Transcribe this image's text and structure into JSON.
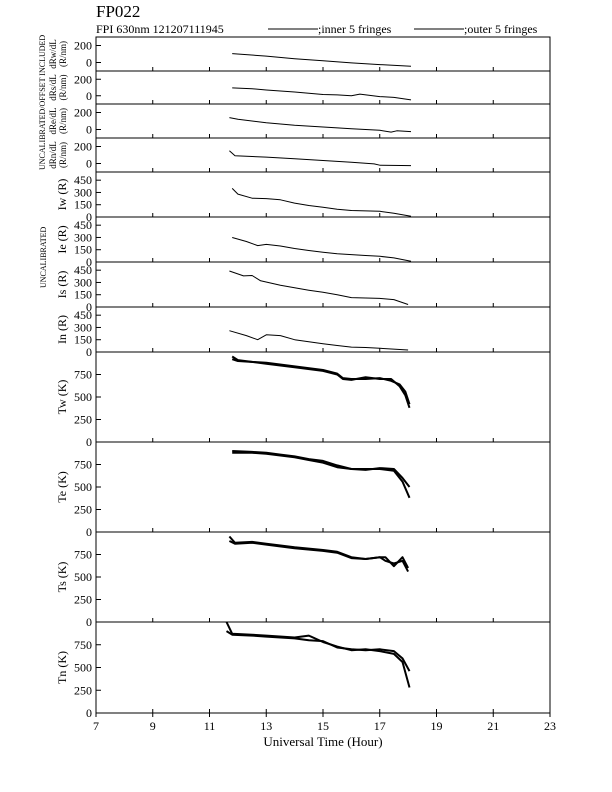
{
  "header": {
    "station": "FP022",
    "info": "FPI 630nm 121207111945",
    "legend_inner": ";inner 5 fringes",
    "legend_outer": ";outer 5 fringes"
  },
  "side_labels": {
    "offset": "UNCALIBRATED/OFFSET INCLUDED",
    "calib_top": "UNCALIBRATED",
    "calib_mid": "UNCALIBRATED"
  },
  "chart_data": {
    "type": "line",
    "xlabel": "Universal Time (Hour)",
    "xlim": [
      7,
      23
    ],
    "xticks": [
      7,
      9,
      11,
      13,
      15,
      17,
      19,
      21,
      23
    ],
    "legend": "top",
    "grid": false,
    "panels": [
      {
        "id": "drw",
        "ylabel": "dRw/dL\n(R/nm)",
        "ylim": [
          -100,
          300
        ],
        "yticks": [
          0,
          200
        ],
        "series": [
          {
            "name": "inner",
            "x": [
              11.8,
              13,
              14,
              15,
              16,
              17,
              18.1
            ],
            "y": [
              105,
              75,
              45,
              20,
              -5,
              -25,
              -45
            ]
          }
        ]
      },
      {
        "id": "drs",
        "ylabel": "dRs/dL\n(R/nm)",
        "ylim": [
          -100,
          300
        ],
        "yticks": [
          0,
          200
        ],
        "series": [
          {
            "name": "inner",
            "x": [
              11.8,
              12.5,
              13,
              14,
              15,
              15.5,
              16,
              16.3,
              17,
              17.5,
              18.1
            ],
            "y": [
              95,
              85,
              70,
              45,
              15,
              10,
              0,
              20,
              -10,
              -20,
              -50
            ]
          }
        ]
      },
      {
        "id": "dre",
        "ylabel": "dRe/dL\n(R/nm)",
        "ylim": [
          -100,
          300
        ],
        "yticks": [
          0,
          200
        ],
        "series": [
          {
            "name": "inner",
            "x": [
              11.7,
              12,
              13,
              14,
              15,
              16,
              17,
              17.4,
              17.6,
              18.1
            ],
            "y": [
              140,
              120,
              80,
              50,
              30,
              10,
              -10,
              -30,
              -15,
              -25
            ]
          }
        ]
      },
      {
        "id": "drn",
        "ylabel": "dRn/dL\n(R/nm)",
        "ylim": [
          -100,
          300
        ],
        "yticks": [
          0,
          200
        ],
        "series": [
          {
            "name": "inner",
            "x": [
              11.7,
              11.9,
              13,
              14,
              15,
              16,
              16.8,
              17,
              18.1
            ],
            "y": [
              150,
              90,
              75,
              55,
              35,
              15,
              -5,
              -20,
              -25
            ]
          }
        ]
      },
      {
        "id": "iw",
        "ylabel": "Iw (R)",
        "ylim": [
          0,
          550
        ],
        "yticks": [
          0,
          150,
          300,
          450
        ],
        "series": [
          {
            "name": "inner",
            "x": [
              11.8,
              12.0,
              12.5,
              13,
              13.5,
              14,
              14.5,
              15,
              15.5,
              16,
              16.5,
              17,
              17.5,
              18.1
            ],
            "y": [
              350,
              280,
              230,
              225,
              210,
              170,
              140,
              120,
              95,
              80,
              75,
              70,
              45,
              10
            ]
          }
        ]
      },
      {
        "id": "ie",
        "ylabel": "Ie (R)",
        "ylim": [
          0,
          550
        ],
        "yticks": [
          0,
          150,
          300,
          450
        ],
        "series": [
          {
            "name": "inner",
            "x": [
              11.8,
              12.3,
              12.7,
              13,
              13.5,
              14,
              14.5,
              15,
              15.5,
              16,
              16.5,
              17,
              17.5,
              18.1
            ],
            "y": [
              300,
              250,
              200,
              215,
              195,
              165,
              140,
              120,
              100,
              90,
              80,
              70,
              50,
              10
            ]
          }
        ]
      },
      {
        "id": "is",
        "ylabel": "Is (R)",
        "ylim": [
          0,
          550
        ],
        "yticks": [
          0,
          150,
          300,
          450
        ],
        "series": [
          {
            "name": "inner",
            "x": [
              11.7,
              12.2,
              12.5,
              12.8,
              13.5,
              14,
              14.5,
              15,
              15.5,
              16,
              16.5,
              17,
              17.5,
              18
            ],
            "y": [
              440,
              380,
              385,
              320,
              265,
              235,
              205,
              180,
              150,
              115,
              110,
              105,
              90,
              30
            ]
          }
        ]
      },
      {
        "id": "in",
        "ylabel": "In (R)",
        "ylim": [
          0,
          550
        ],
        "yticks": [
          0,
          150,
          300,
          450
        ],
        "series": [
          {
            "name": "inner",
            "x": [
              11.7,
              12.3,
              12.7,
              13,
              13.5,
              14,
              14.5,
              15,
              15.5,
              16,
              16.5,
              17,
              18
            ],
            "y": [
              260,
              200,
              150,
              210,
              200,
              150,
              125,
              100,
              80,
              60,
              55,
              45,
              25
            ]
          }
        ]
      },
      {
        "id": "tw",
        "ylabel": "Tw (K)",
        "ylim": [
          0,
          1000
        ],
        "yticks": [
          0,
          250,
          500,
          750
        ],
        "series": [
          {
            "name": "inner",
            "x": [
              11.8,
              12,
              13,
              14,
              15,
              15.5,
              15.7,
              16,
              16.5,
              17,
              17.4,
              17.7,
              17.9,
              18.05
            ],
            "y": [
              920,
              900,
              880,
              840,
              800,
              760,
              710,
              700,
              700,
              710,
              680,
              640,
              560,
              420
            ]
          },
          {
            "name": "outer",
            "x": [
              11.8,
              12,
              13,
              14,
              15,
              15.5,
              15.7,
              16,
              16.5,
              17,
              17.4,
              17.7,
              17.9,
              18.05
            ],
            "y": [
              950,
              910,
              870,
              830,
              790,
              750,
              700,
              690,
              720,
              700,
              700,
              620,
              520,
              380
            ]
          }
        ]
      },
      {
        "id": "te",
        "ylabel": "Te (K)",
        "ylim": [
          0,
          1000
        ],
        "yticks": [
          0,
          250,
          500,
          750
        ],
        "series": [
          {
            "name": "inner",
            "x": [
              11.8,
              12.5,
              13,
              13.5,
              14,
              14.5,
              15,
              15.5,
              16,
              16.5,
              17,
              17.5,
              17.8,
              18.05
            ],
            "y": [
              900,
              890,
              880,
              860,
              840,
              810,
              790,
              740,
              700,
              700,
              700,
              680,
              560,
              380
            ]
          },
          {
            "name": "outer",
            "x": [
              11.8,
              12.5,
              13,
              13.5,
              14,
              14.5,
              15,
              15.5,
              16,
              16.5,
              17,
              17.5,
              17.8,
              18.05
            ],
            "y": [
              880,
              880,
              870,
              850,
              830,
              800,
              770,
              720,
              700,
              690,
              710,
              700,
              600,
              500
            ]
          }
        ]
      },
      {
        "id": "ts",
        "ylabel": "Ts (K)",
        "ylim": [
          0,
          1000
        ],
        "yticks": [
          0,
          250,
          500,
          750
        ],
        "series": [
          {
            "name": "inner",
            "x": [
              11.7,
              11.9,
              12.5,
              13,
              14,
              15,
              15.5,
              16,
              16.5,
              17,
              17.2,
              17.5,
              17.8,
              18.0
            ],
            "y": [
              950,
              880,
              890,
              870,
              830,
              800,
              780,
              720,
              700,
              720,
              720,
              620,
              720,
              600
            ]
          },
          {
            "name": "outer",
            "x": [
              11.7,
              11.9,
              12.5,
              13,
              14,
              15,
              15.5,
              16,
              16.5,
              17,
              17.2,
              17.5,
              17.8,
              18.0
            ],
            "y": [
              900,
              870,
              880,
              860,
              820,
              790,
              770,
              710,
              700,
              720,
              680,
              650,
              680,
              560
            ]
          }
        ]
      },
      {
        "id": "tn",
        "ylabel": "Tn (K)",
        "ylim": [
          0,
          1000
        ],
        "yticks": [
          0,
          250,
          500,
          750
        ],
        "series": [
          {
            "name": "inner",
            "x": [
              11.6,
              11.8,
              12.5,
              13,
              14,
              14.5,
              15,
              15.5,
              16,
              16.5,
              17,
              17.5,
              17.8,
              18.05
            ],
            "y": [
              1000,
              870,
              860,
              850,
              830,
              850,
              780,
              730,
              690,
              700,
              680,
              650,
              560,
              280
            ]
          },
          {
            "name": "outer",
            "x": [
              11.6,
              11.8,
              12.5,
              13,
              14,
              14.5,
              15,
              15.5,
              16,
              16.5,
              17,
              17.5,
              17.8,
              18.05
            ],
            "y": [
              900,
              860,
              850,
              840,
              820,
              800,
              790,
              720,
              700,
              690,
              700,
              680,
              600,
              460
            ]
          }
        ]
      }
    ]
  }
}
